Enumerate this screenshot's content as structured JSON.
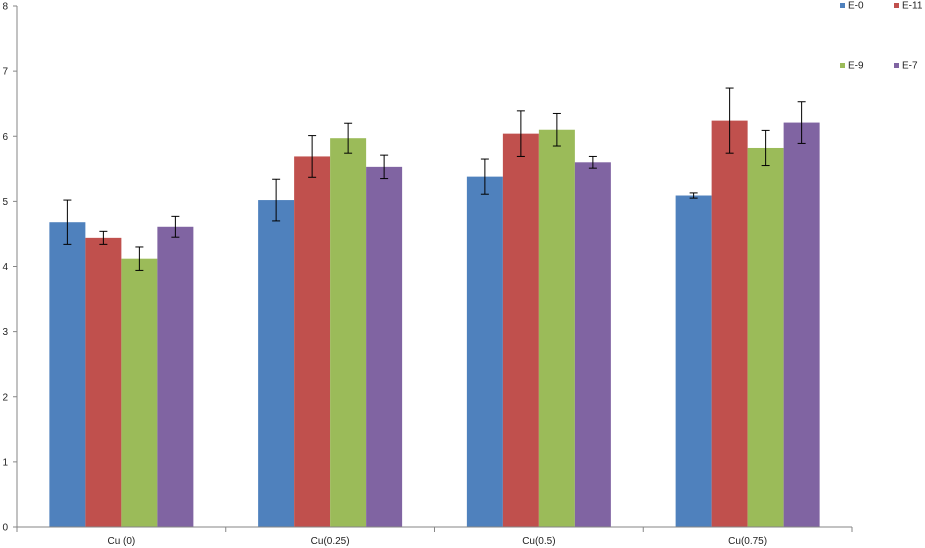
{
  "chart_data": {
    "type": "bar",
    "title": "",
    "xlabel": "",
    "ylabel": "",
    "categories": [
      "Cu (0)",
      "Cu(0.25)",
      "Cu(0.5)",
      "Cu(0.75)"
    ],
    "series": [
      {
        "name": "E-0",
        "color": "#4f81bd",
        "values": [
          4.68,
          5.02,
          5.38,
          5.09
        ],
        "errors": [
          0.34,
          0.32,
          0.27,
          0.04
        ]
      },
      {
        "name": "E-11",
        "color": "#c0504d",
        "values": [
          4.44,
          5.69,
          6.04,
          6.24
        ],
        "errors": [
          0.1,
          0.32,
          0.35,
          0.5
        ]
      },
      {
        "name": "E-9",
        "color": "#9bbb59",
        "values": [
          4.12,
          5.97,
          6.1,
          5.82
        ],
        "errors": [
          0.18,
          0.23,
          0.25,
          0.27
        ]
      },
      {
        "name": "E-7",
        "color": "#8064a2",
        "values": [
          4.61,
          5.53,
          5.6,
          6.21
        ],
        "errors": [
          0.16,
          0.18,
          0.09,
          0.32
        ]
      }
    ],
    "ylim": [
      0,
      8
    ],
    "yticks": [
      0,
      1,
      2,
      3,
      4,
      5,
      6,
      7,
      8
    ],
    "grid": false,
    "legend_position": "top-right",
    "error_bars": true
  }
}
